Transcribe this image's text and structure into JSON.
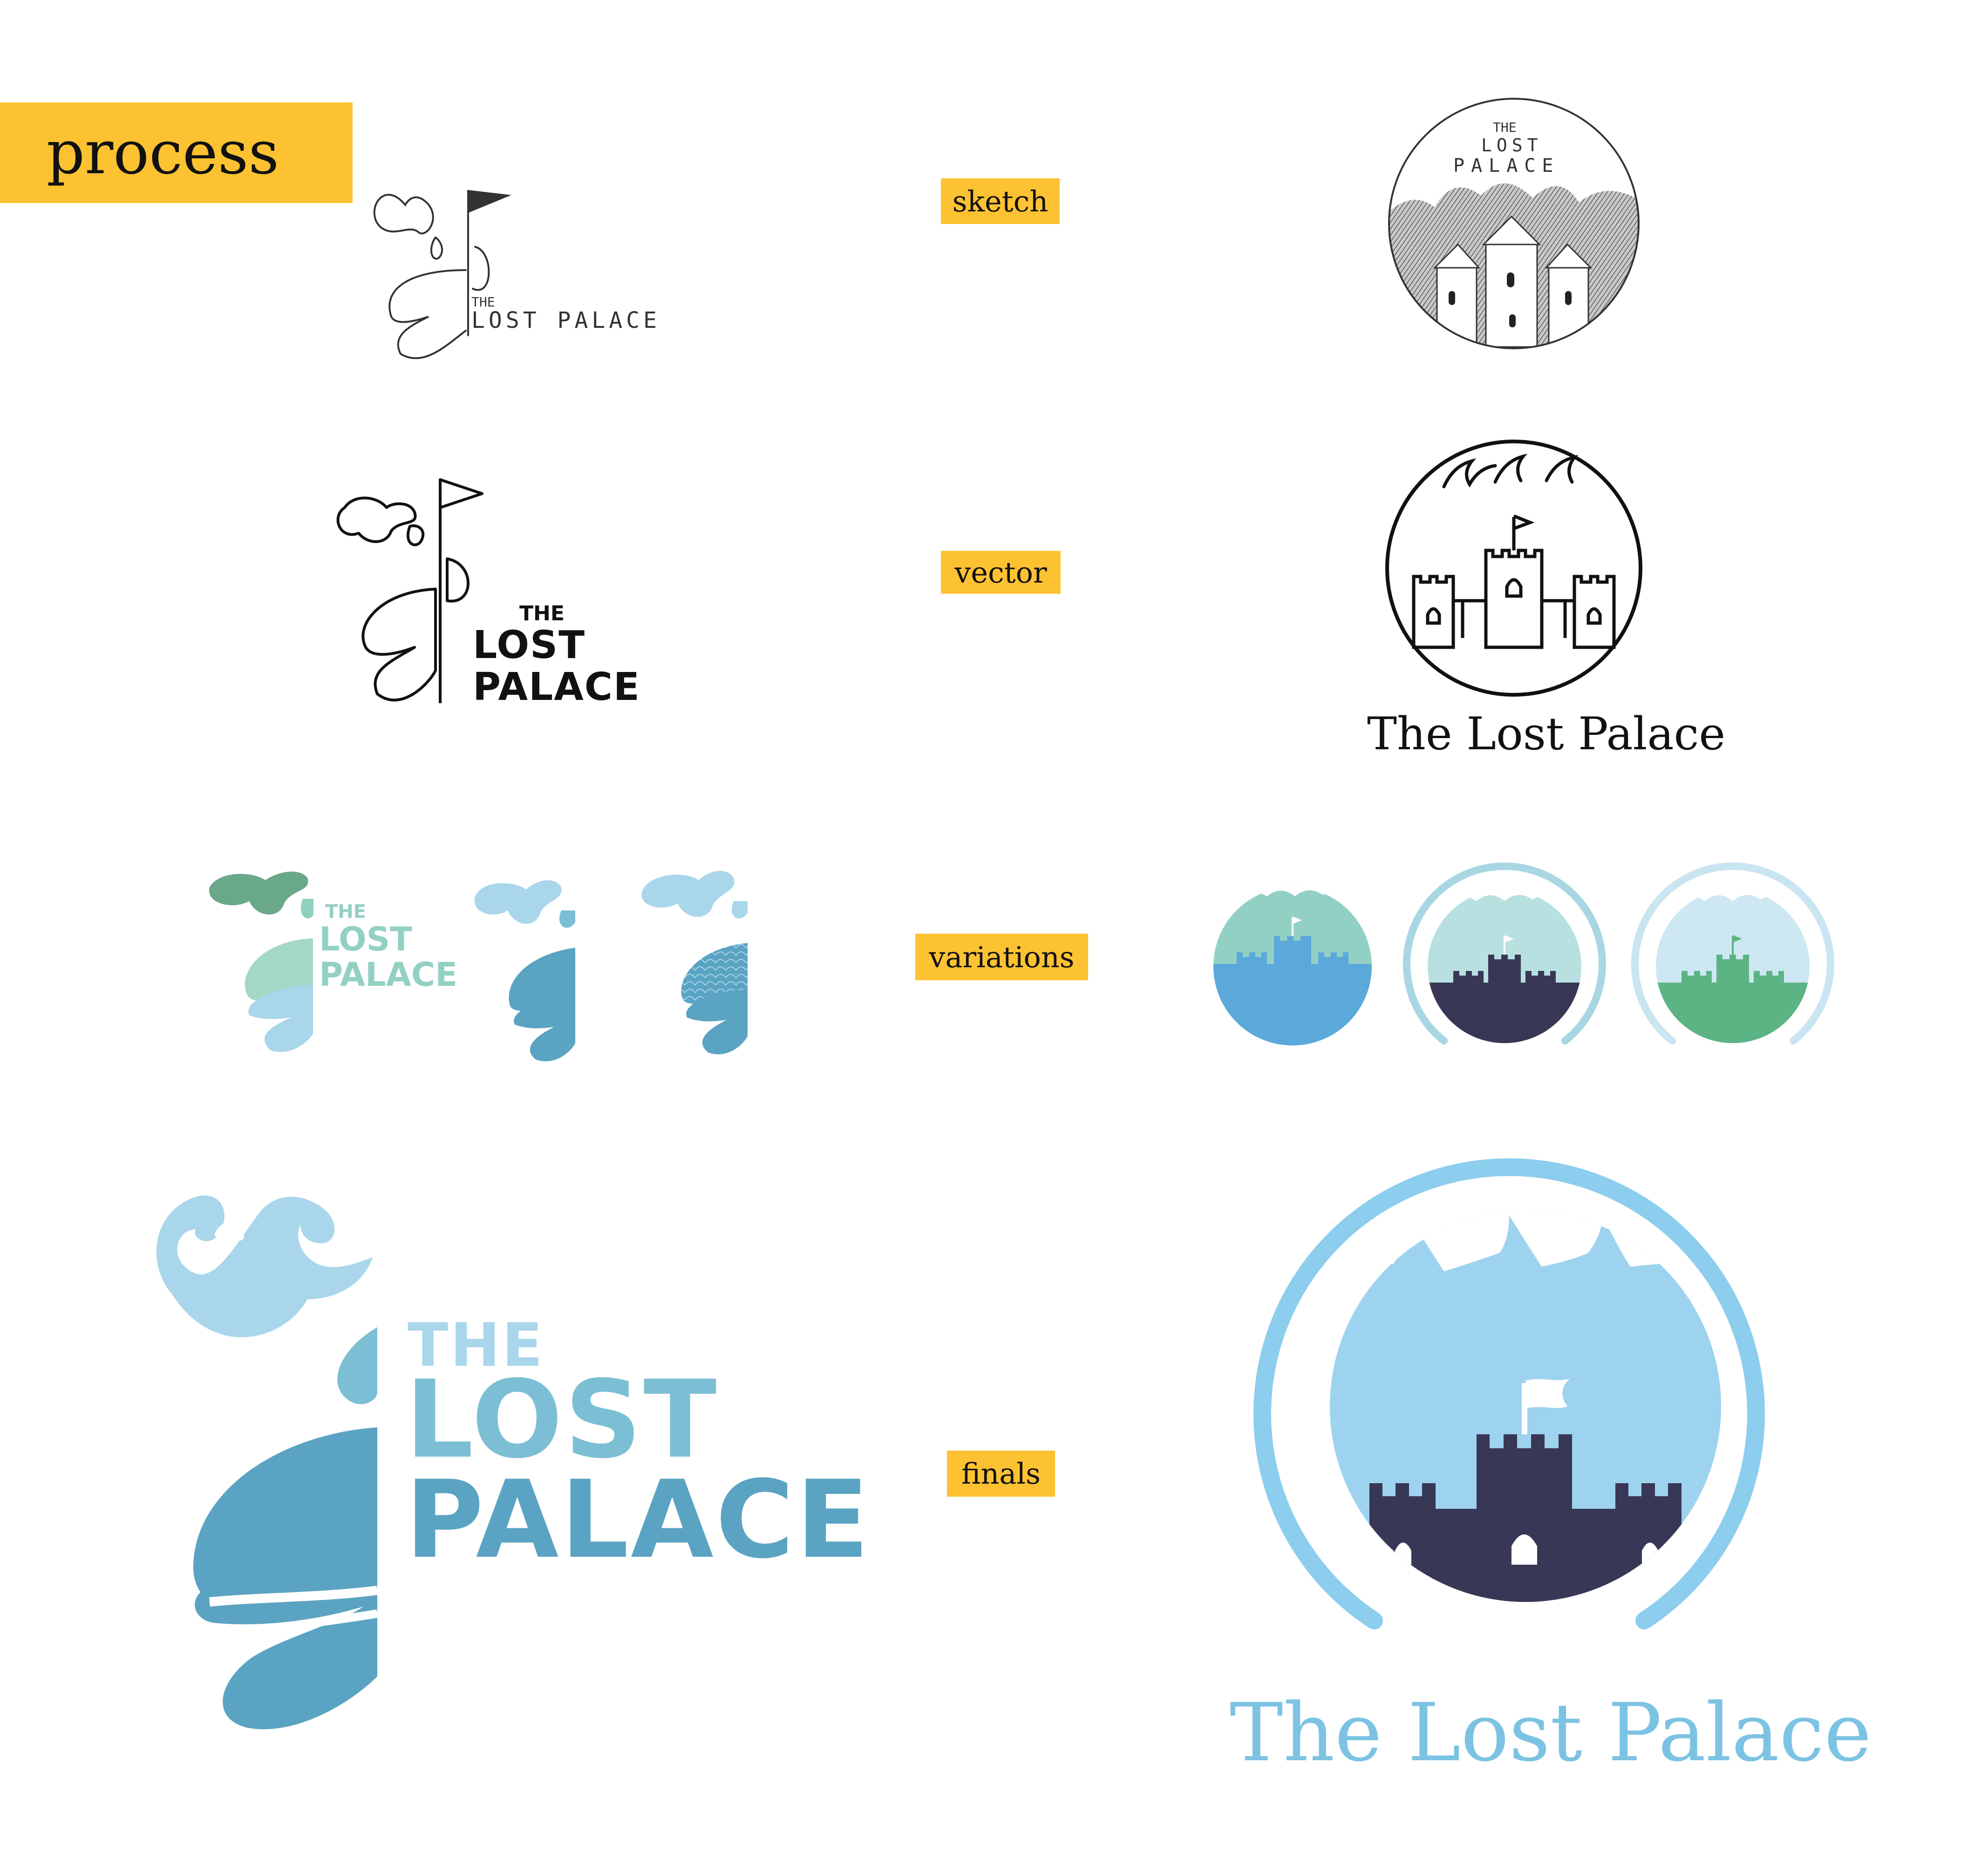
{
  "header": {
    "title": "process"
  },
  "stages": {
    "sketch": "sketch",
    "vector": "vector",
    "variations": "variations",
    "finals": "finals"
  },
  "logo": {
    "the": "THE",
    "lost": "LOST",
    "palace": "PALACE",
    "sketch_wordmark": "THE LOST PALACE",
    "sketch_the": "THE",
    "sketch_lost": "LOST",
    "sketch_palace": "PALACE",
    "full_name": "The Lost Palace"
  },
  "colors": {
    "tag": "#fdc232",
    "ink": "#111111",
    "final_light": "#9dd3ef",
    "final_mid": "#7cbfd4",
    "final_dark": "#5ba3c2",
    "castle_navy": "#383856",
    "variation_green": "#6aa88a",
    "variation_mint": "#93d0c4",
    "variation_green_castle": "#5cb485",
    "variation_blue_castle": "#5aa9da"
  }
}
